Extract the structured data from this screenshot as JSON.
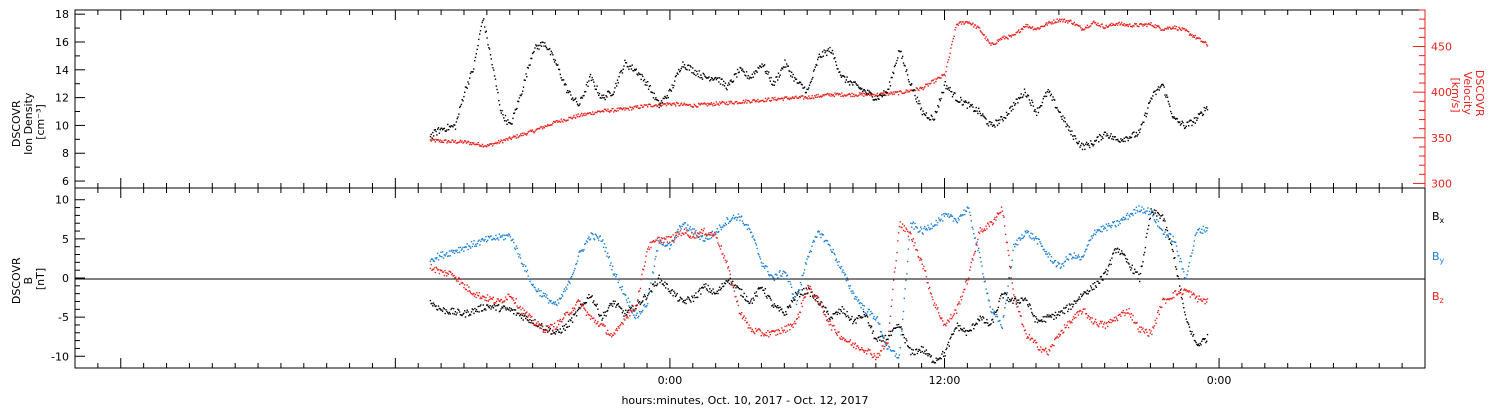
{
  "figure": {
    "xlabel": "hours:minutes, Oct. 10, 2017 - Oct. 12, 2017",
    "x_ticks": [
      "0:00",
      "12:00",
      "0:00"
    ],
    "x_range_hours": [
      -26,
      33
    ],
    "x_tick_hours": [
      0,
      12,
      24
    ],
    "colors": {
      "black": "#000000",
      "red": "#e8231e",
      "blue": "#1a7fd6"
    }
  },
  "chart_data": [
    {
      "type": "scatter",
      "panel": "top",
      "ylabel_left": [
        "DSCOVR",
        "Ion Density",
        "[cm⁻³]"
      ],
      "ylabel_right": [
        "DSCOVR",
        "Velocity",
        "[km/s]"
      ],
      "yleft_ticks": [
        "6",
        "8",
        "10",
        "12",
        "14",
        "16",
        "18"
      ],
      "yleft_range": [
        5.5,
        18.3
      ],
      "yright_ticks": [
        "300",
        "350",
        "400",
        "450"
      ],
      "yright_range": [
        295,
        490
      ],
      "x_range_hours": [
        -26,
        33
      ],
      "series": [
        {
          "axis": "left",
          "color": "#000000",
          "x": [
            -10.5,
            -10.0,
            -9.4,
            -9.0,
            -8.6,
            -8.2,
            -7.8,
            -7.4,
            -7.0,
            -6.5,
            -6.0,
            -5.5,
            -5.0,
            -4.5,
            -4.0,
            -3.5,
            -3.0,
            -2.5,
            -2.0,
            -1.5,
            -1.0,
            -0.5,
            0.0,
            0.5,
            1.0,
            1.5,
            2.0,
            2.5,
            3.0,
            3.5,
            4.0,
            4.5,
            5.0,
            5.5,
            6.0,
            6.5,
            7.0,
            7.5,
            8.0,
            8.5,
            9.0,
            9.5,
            10.0,
            10.5,
            11.0,
            11.5,
            12.0,
            12.5,
            13.0,
            13.5,
            14.0,
            14.5,
            15.0,
            15.5,
            16.0,
            16.5,
            17.0,
            17.5,
            18.0,
            18.5,
            19.0,
            19.5,
            20.0,
            20.5,
            21.0,
            21.5,
            22.0,
            22.5,
            23.0,
            23.5
          ],
          "y": [
            9.3,
            9.8,
            10.0,
            12.5,
            14.2,
            17.8,
            14.5,
            11.0,
            10.0,
            12.5,
            15.5,
            16.0,
            14.5,
            12.5,
            11.5,
            13.5,
            12.0,
            12.5,
            14.5,
            14.0,
            13.0,
            11.5,
            12.5,
            14.5,
            14.0,
            13.5,
            13.5,
            12.8,
            14.0,
            13.5,
            14.5,
            13.0,
            14.5,
            13.2,
            12.5,
            15.0,
            15.5,
            13.5,
            13.0,
            12.5,
            12.0,
            12.5,
            15.5,
            13.0,
            11.0,
            10.5,
            13.0,
            12.0,
            11.5,
            11.0,
            10.0,
            10.5,
            11.5,
            12.5,
            11.0,
            12.5,
            11.0,
            9.5,
            8.5,
            8.8,
            9.5,
            9.0,
            9.2,
            9.5,
            12.0,
            13.0,
            10.5,
            10.0,
            10.5,
            11.5
          ]
        },
        {
          "axis": "right",
          "color": "#e8231e",
          "x": [
            -10.5,
            -10.0,
            -9.0,
            -8.0,
            -7.0,
            -6.0,
            -5.0,
            -4.0,
            -3.0,
            -2.0,
            -1.0,
            0.0,
            1.0,
            2.0,
            3.0,
            4.0,
            5.0,
            6.0,
            7.0,
            8.0,
            9.0,
            10.0,
            11.0,
            12.0,
            12.5,
            13.0,
            13.5,
            14.0,
            14.5,
            15.0,
            15.5,
            16.0,
            16.5,
            17.0,
            17.5,
            18.0,
            18.5,
            19.0,
            19.5,
            20.0,
            20.5,
            21.0,
            21.5,
            22.0,
            22.5,
            23.0,
            23.5
          ],
          "y": [
            348,
            347,
            346,
            342,
            350,
            358,
            368,
            375,
            380,
            382,
            386,
            388,
            386,
            388,
            390,
            392,
            394,
            395,
            398,
            398,
            398,
            400,
            405,
            420,
            475,
            478,
            470,
            452,
            460,
            462,
            474,
            470,
            476,
            480,
            478,
            470,
            477,
            472,
            476,
            474,
            474,
            475,
            470,
            472,
            468,
            460,
            452
          ]
        }
      ]
    },
    {
      "type": "scatter",
      "panel": "bottom",
      "ylabel_left": [
        "DSCOVR",
        "B",
        "[nT]"
      ],
      "y_ticks": [
        "-10",
        "-5",
        "0",
        "5",
        "10"
      ],
      "y_range": [
        -11.5,
        11.5
      ],
      "x_range_hours": [
        -26,
        33
      ],
      "legend_placement": "right",
      "series": [
        {
          "name_main": "B",
          "name_sub": "x",
          "color": "#000000",
          "x": [
            -10.5,
            -10.0,
            -9.0,
            -8.0,
            -7.0,
            -6.0,
            -5.0,
            -4.5,
            -4.0,
            -3.5,
            -3.0,
            -2.5,
            -2.0,
            -1.5,
            -1.0,
            -0.5,
            0.0,
            0.5,
            1.0,
            1.5,
            2.0,
            2.5,
            3.0,
            3.5,
            4.0,
            4.5,
            5.0,
            5.5,
            6.0,
            6.5,
            7.0,
            7.5,
            8.0,
            8.5,
            9.0,
            9.5,
            10.0,
            10.5,
            11.0,
            11.5,
            12.0,
            12.5,
            13.0,
            13.5,
            14.0,
            14.5,
            15.0,
            15.5,
            16.0,
            16.5,
            17.0,
            17.5,
            18.0,
            18.5,
            19.0,
            19.5,
            20.0,
            20.5,
            21.0,
            21.5,
            22.0,
            22.5,
            23.0,
            23.5
          ],
          "y": [
            -3.0,
            -4.0,
            -4.5,
            -3.5,
            -4.0,
            -5.5,
            -7.0,
            -6.0,
            -4.0,
            -2.0,
            -5.0,
            -3.0,
            -4.5,
            -3.5,
            -2.0,
            0.0,
            -1.5,
            -3.0,
            -2.5,
            -1.0,
            -2.0,
            0.0,
            -1.5,
            -3.0,
            -1.0,
            -3.5,
            -4.5,
            -2.0,
            -1.5,
            -3.0,
            -5.0,
            -4.0,
            -5.5,
            -4.5,
            -8.0,
            -7.5,
            -6.0,
            -9.5,
            -9.0,
            -10.5,
            -9.5,
            -6.0,
            -7.0,
            -5.0,
            -6.0,
            -2.0,
            -3.0,
            -2.5,
            -5.5,
            -5.0,
            -4.5,
            -3.5,
            -2.0,
            -1.0,
            0.5,
            4.0,
            2.0,
            0.0,
            8.5,
            8.0,
            3.0,
            -5.0,
            -8.5,
            -7.5
          ]
        },
        {
          "name_main": "B",
          "name_sub": "y",
          "color": "#1a7fd6",
          "x": [
            -10.5,
            -10.0,
            -9.0,
            -8.0,
            -7.0,
            -6.0,
            -5.0,
            -4.5,
            -4.0,
            -3.5,
            -3.0,
            -2.5,
            -2.0,
            -1.5,
            -1.0,
            -0.5,
            0.0,
            0.5,
            1.0,
            1.5,
            2.0,
            2.5,
            3.0,
            3.5,
            4.0,
            4.5,
            5.0,
            5.5,
            6.0,
            6.5,
            7.0,
            7.5,
            8.0,
            8.5,
            9.0,
            9.5,
            10.0,
            10.5,
            11.0,
            11.5,
            12.0,
            12.5,
            13.0,
            13.5,
            14.0,
            14.5,
            15.0,
            15.5,
            16.0,
            16.5,
            17.0,
            17.5,
            18.0,
            18.5,
            19.0,
            19.5,
            20.0,
            20.5,
            21.0,
            21.5,
            22.0,
            22.5,
            23.0,
            23.5
          ],
          "y": [
            2.5,
            3.0,
            4.0,
            5.0,
            5.5,
            -1.0,
            -3.5,
            -1.0,
            3.0,
            5.5,
            5.0,
            1.0,
            -2.0,
            -5.0,
            -3.0,
            5.0,
            4.0,
            7.0,
            6.0,
            5.0,
            6.0,
            7.5,
            8.0,
            6.0,
            2.0,
            0.0,
            1.0,
            -3.0,
            3.0,
            6.0,
            4.0,
            1.0,
            -2.0,
            -4.0,
            -5.0,
            -9.0,
            -10.0,
            7.0,
            6.0,
            7.0,
            8.0,
            7.5,
            9.0,
            3.0,
            -4.0,
            -6.0,
            4.0,
            6.0,
            5.0,
            3.0,
            1.5,
            3.0,
            2.5,
            6.0,
            6.5,
            7.0,
            8.0,
            9.0,
            8.5,
            6.0,
            5.0,
            0.0,
            6.0,
            6.5
          ]
        },
        {
          "name_main": "B",
          "name_sub": "z",
          "color": "#e8231e",
          "x": [
            -10.5,
            -10.0,
            -9.5,
            -9.0,
            -8.5,
            -8.0,
            -7.5,
            -7.0,
            -6.5,
            -6.0,
            -5.5,
            -5.0,
            -4.5,
            -4.0,
            -3.5,
            -3.0,
            -2.5,
            -2.0,
            -1.5,
            -1.0,
            -0.5,
            0.0,
            0.5,
            1.0,
            1.5,
            2.0,
            2.5,
            3.0,
            3.5,
            4.0,
            4.5,
            5.0,
            5.5,
            6.0,
            6.5,
            7.0,
            7.5,
            8.0,
            8.5,
            9.0,
            9.5,
            10.0,
            10.5,
            11.0,
            11.5,
            12.0,
            12.5,
            13.0,
            13.5,
            14.0,
            14.5,
            15.0,
            15.5,
            16.0,
            16.5,
            17.0,
            17.5,
            18.0,
            18.5,
            19.0,
            19.5,
            20.0,
            20.5,
            21.0,
            21.5,
            22.0,
            22.5,
            23.0,
            23.5
          ],
          "y": [
            1.5,
            0.8,
            0.6,
            -1.0,
            -2.0,
            -2.5,
            -3.0,
            -2.0,
            -4.0,
            -5.5,
            -6.5,
            -6.0,
            -4.5,
            -3.0,
            -5.0,
            -6.0,
            -7.5,
            -5.0,
            -3.5,
            4.0,
            5.0,
            5.0,
            6.0,
            5.5,
            6.0,
            5.5,
            1.5,
            -4.0,
            -6.5,
            -7.0,
            -7.0,
            -6.5,
            -5.5,
            -1.0,
            -3.0,
            -6.0,
            -7.5,
            -8.5,
            -9.0,
            -10.0,
            -8.0,
            7.0,
            5.5,
            2.0,
            -3.0,
            -6.0,
            -4.0,
            0.0,
            6.0,
            7.0,
            9.0,
            -2.0,
            -7.0,
            -8.5,
            -9.5,
            -7.0,
            -5.5,
            -4.0,
            -5.5,
            -6.0,
            -5.0,
            -4.0,
            -6.5,
            -7.0,
            -3.0,
            -2.0,
            -1.5,
            -2.5,
            -3.0
          ]
        }
      ]
    }
  ]
}
